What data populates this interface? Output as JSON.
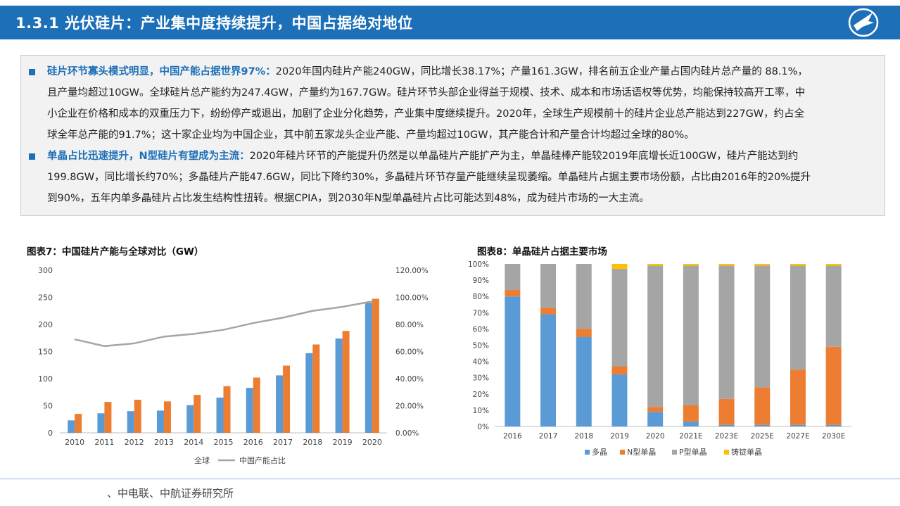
{
  "header": {
    "title": "1.3.1 光伏硅片：产业集中度持续提升，中国占据绝对地位",
    "logo_text": "AVIC"
  },
  "summary": {
    "bullets": [
      {
        "lead": "硅片环节寡头模式明显，中国产能占据世界97%：",
        "line1": "2020年国内硅片产能240GW，同比增长38.17%；产量161.3GW，排名前五企业产量占国内硅片总产量的 88.1%，",
        "line2": "且产量均超过10GW。全球硅片总产能约为247.4GW，产量约为167.7GW。硅片环节头部企业得益于规模、技术、成本和市场话语权等优势，均能保持较高开工率，中",
        "line3": "小企业在价格和成本的双重压力下，纷纷停产或退出，加剧了企业分化趋势，产业集中度继续提升。2020年，全球生产规模前十的硅片企业总产能达到227GW，约占全",
        "line4": "球全年总产能的91.7%；这十家企业均为中国企业，其中前五家龙头企业产能、产量均超过10GW，其产能合计和产量合计均超过全球的80%。"
      },
      {
        "lead": "单晶占比迅速提升，N型硅片有望成为主流：",
        "line1": "2020年硅片环节的产能提升仍然是以单晶硅片产能扩产为主，单晶硅棒产能较2019年底增长近100GW，硅片产能达到约",
        "line2": "199.8GW，同比增长约70%；多晶硅片产能47.6GW，同比下降约30%，多晶硅片环节存量产能继续呈现萎缩。单晶硅片占据主要市场份额，占比由2016年的20%提升",
        "line3": "到90%，五年内单多晶硅片占比发生结构性扭转。根据CPIA，到2030年N型单晶硅片占比可能达到48%，成为硅片市场的一大主流。"
      }
    ]
  },
  "chart_data": [
    {
      "type": "bar",
      "title": "图表7：中国硅片产能与全球对比（GW）",
      "categories": [
        "2010",
        "2011",
        "2012",
        "2013",
        "2014",
        "2015",
        "2016",
        "2017",
        "2018",
        "2019",
        "2020"
      ],
      "series": [
        {
          "name": "全球",
          "values": [
            35,
            57,
            61,
            58,
            70,
            86,
            102,
            124,
            163,
            188,
            247.4
          ],
          "color": "#ed7d31"
        },
        {
          "name": "全球",
          "values": [
            23,
            36,
            40,
            41,
            51,
            65,
            83,
            106,
            147,
            174,
            240
          ],
          "color": "#5b9bd5"
        }
      ],
      "line": {
        "name": "中国产能占比",
        "values": [
          0.69,
          0.64,
          0.66,
          0.71,
          0.73,
          0.76,
          0.81,
          0.85,
          0.9,
          0.93,
          0.97
        ],
        "color": "#a5a5a5"
      },
      "legend": [
        "全球",
        "中国产能占比"
      ],
      "ylim": [
        0,
        300
      ],
      "y2lim": [
        0,
        1.2
      ],
      "yticks": [
        "0",
        "50",
        "100",
        "150",
        "200",
        "250",
        "300"
      ],
      "y2ticks": [
        "0.00%",
        "20.00%",
        "40.00%",
        "60.00%",
        "80.00%",
        "100.00%",
        "120.00%"
      ],
      "legend_position": "bottom"
    },
    {
      "type": "bar",
      "stacked": true,
      "title": "图表8：单晶硅片占据主要市场",
      "categories": [
        "2016",
        "2017",
        "2018",
        "2019",
        "2020",
        "2021E",
        "2023E",
        "2025E",
        "2027E",
        "2030E"
      ],
      "series": [
        {
          "name": "多晶",
          "values": [
            0.8,
            0.69,
            0.55,
            0.32,
            0.09,
            0.03,
            0.01,
            0.01,
            0.01,
            0.01
          ],
          "color": "#5b9bd5"
        },
        {
          "name": "N型单晶",
          "values": [
            0.04,
            0.04,
            0.05,
            0.05,
            0.03,
            0.1,
            0.16,
            0.23,
            0.34,
            0.48
          ],
          "color": "#ed7d31"
        },
        {
          "name": "P型单晶",
          "values": [
            0.16,
            0.27,
            0.4,
            0.6,
            0.87,
            0.86,
            0.82,
            0.75,
            0.64,
            0.5
          ],
          "color": "#a5a5a5"
        },
        {
          "name": "铸锭单晶",
          "values": [
            0.0,
            0.0,
            0.0,
            0.03,
            0.01,
            0.01,
            0.01,
            0.01,
            0.01,
            0.01
          ],
          "color": "#ffc000"
        }
      ],
      "ylim": [
        0,
        1
      ],
      "yticks": [
        "0%",
        "10%",
        "20%",
        "30%",
        "40%",
        "50%",
        "60%",
        "70%",
        "80%",
        "90%",
        "100%"
      ],
      "legend_position": "bottom"
    }
  ],
  "source": "、中电联、中航证券研究所"
}
